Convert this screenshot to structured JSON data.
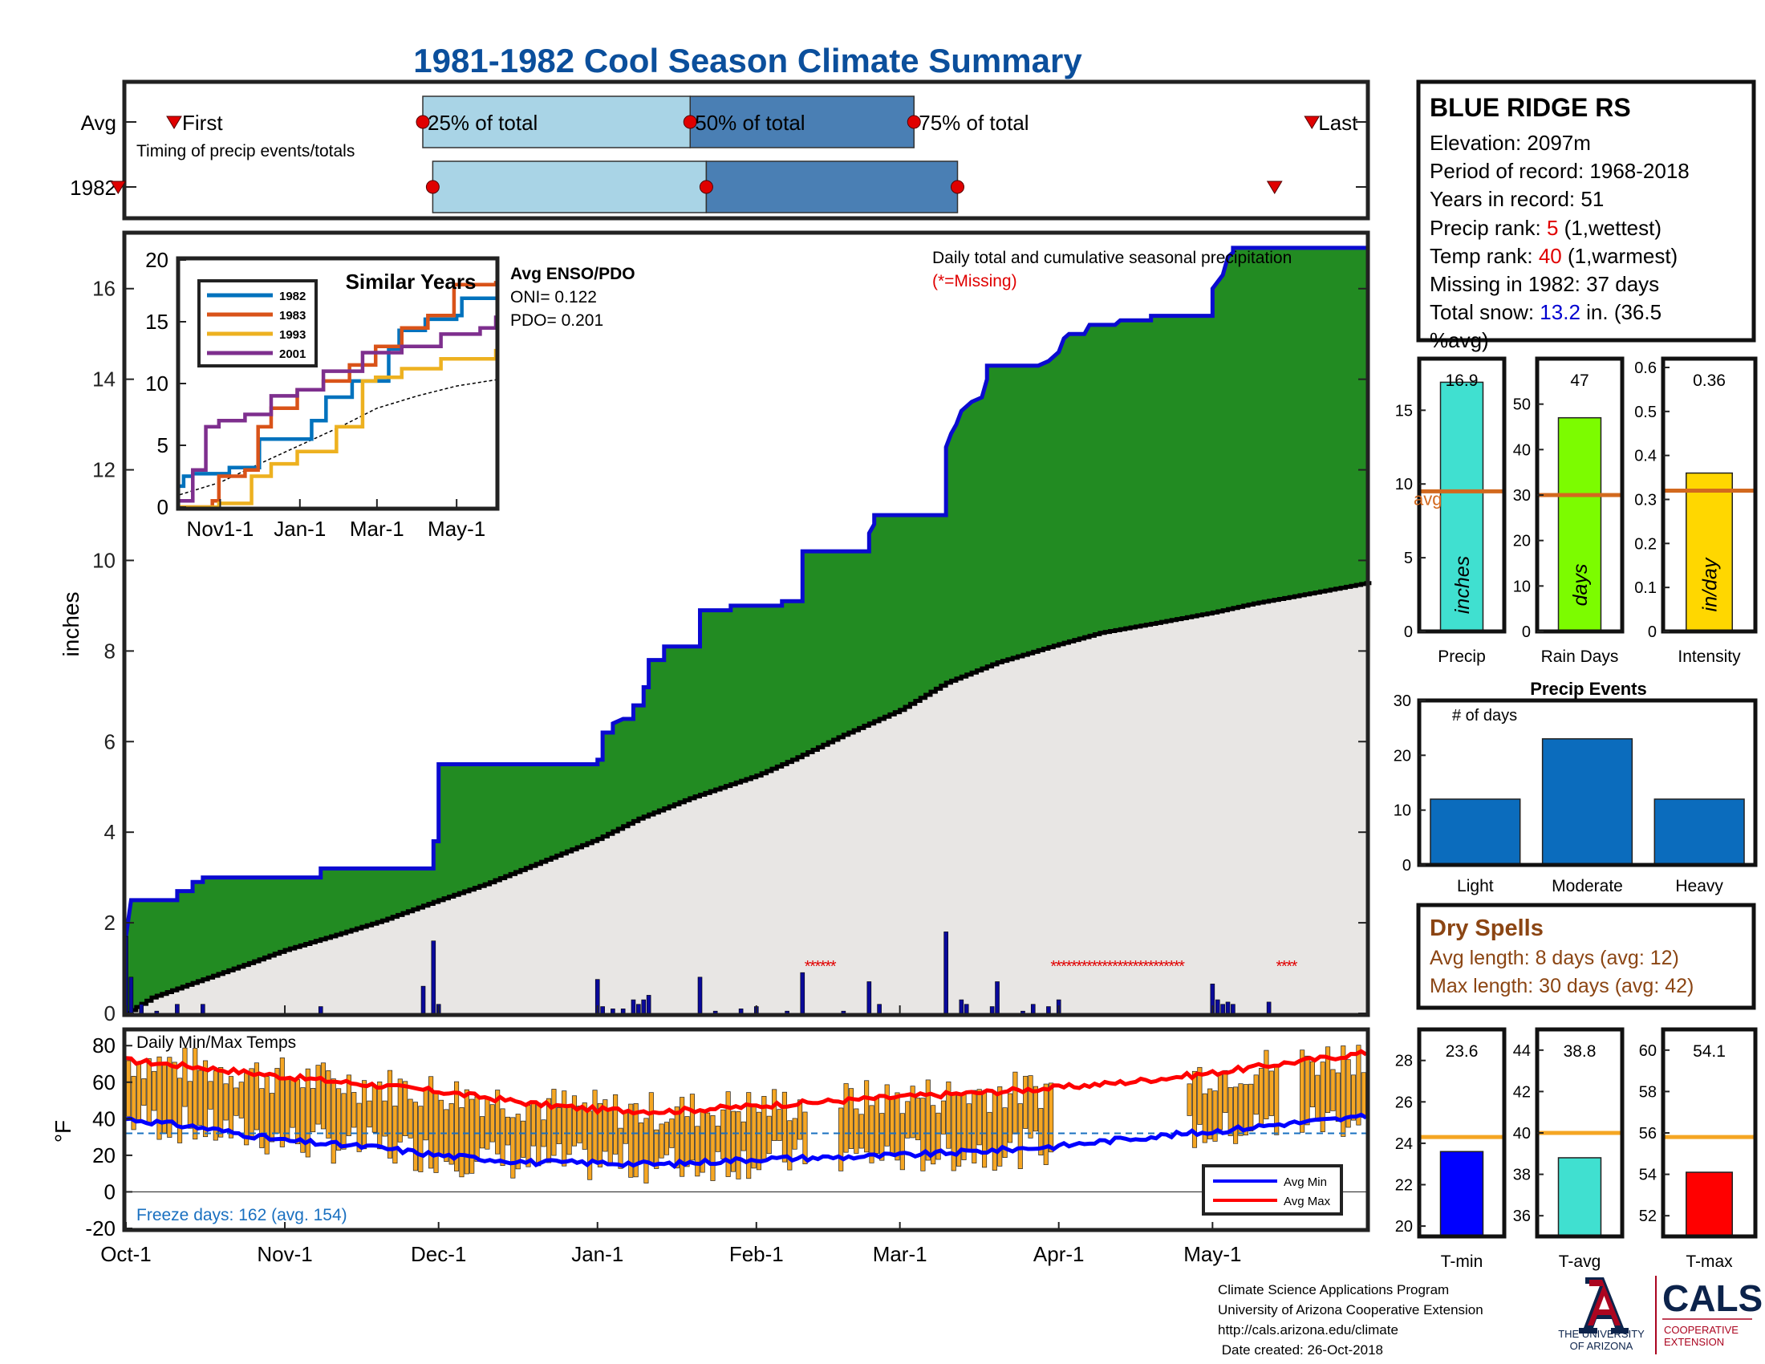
{
  "title": "1981-1982 Cool Season Climate Summary",
  "colors": {
    "title": "#0b4f9c",
    "light_blue": "#a9d4e6",
    "dark_blue": "#4a7fb4",
    "green": "#228b22",
    "grey": "#e8e6e4",
    "precip_line": "#0a0ad0",
    "red": "#e00000",
    "orange": "#f5a623",
    "avg_line": "#d2691e",
    "dry": "#8b4513",
    "cyan": "#40e0d0",
    "lime": "#7cfc00",
    "gold": "#ffd700",
    "bar_blue": "#0b6cbd",
    "ua_red": "#ab0520",
    "ua_navy": "#0c234b"
  },
  "timing": {
    "row_labels": [
      "Avg",
      "1982"
    ],
    "first_label": "First",
    "last_label": "Last",
    "q25_label": "25% of total",
    "q50_label": "50% of total",
    "q75_label": "75% of total",
    "caption": "Timing of precip events/totals",
    "avg": {
      "first": 0.04,
      "q25": 0.24,
      "q50": 0.455,
      "q75": 0.635,
      "last": 0.955
    },
    "y1982": {
      "first": -0.005,
      "q25": 0.248,
      "q50": 0.468,
      "q75": 0.67,
      "last": 0.925
    }
  },
  "station": {
    "name": "BLUE RIDGE RS",
    "elevation": "Elevation: 2097m",
    "period": "Period of record: 1968-2018",
    "years": "Years in record: 51",
    "precip_rank_prefix": "Precip rank: ",
    "precip_rank_value": "5",
    "precip_rank_suffix": " (1,wettest)",
    "temp_rank_prefix": "Temp rank: ",
    "temp_rank_value": "40",
    "temp_rank_suffix": " (1,warmest)",
    "missing": "Missing in 1982: 37 days",
    "snow_prefix": "Total snow: ",
    "snow_value": "13.2",
    "snow_suffix": " in. (36.5",
    "snow_line2": "%avg)"
  },
  "main_chart": {
    "ylabel": "inches",
    "ylim": [
      0,
      17.2
    ],
    "yticks": [
      0,
      2,
      4,
      6,
      8,
      10,
      12,
      14,
      16
    ],
    "x_labels": [
      "Oct-1",
      "Nov-1",
      "Dec-1",
      "Jan-1",
      "Feb-1",
      "Mar-1",
      "Apr-1",
      "May-1"
    ],
    "x_label_days": [
      0,
      31,
      61,
      92,
      123,
      151,
      182,
      212
    ],
    "days": 242,
    "annotation": "Daily total and cumulative seasonal precipitation",
    "missing_note": "(*=Missing)",
    "cumulative_steps": [
      [
        0,
        1.7
      ],
      [
        1,
        2.5
      ],
      [
        10,
        2.5
      ],
      [
        10,
        2.7
      ],
      [
        13,
        2.7
      ],
      [
        13,
        2.9
      ],
      [
        15,
        2.9
      ],
      [
        15,
        3.0
      ],
      [
        38,
        3.0
      ],
      [
        38,
        3.2
      ],
      [
        60,
        3.2
      ],
      [
        60,
        3.8
      ],
      [
        61,
        3.8
      ],
      [
        61,
        4.5
      ],
      [
        61,
        5.5
      ],
      [
        92,
        5.5
      ],
      [
        92,
        5.6
      ],
      [
        93,
        5.6
      ],
      [
        93,
        6.2
      ],
      [
        95,
        6.2
      ],
      [
        95,
        6.4
      ],
      [
        97,
        6.5
      ],
      [
        99,
        6.5
      ],
      [
        99,
        6.8
      ],
      [
        101,
        6.8
      ],
      [
        101,
        7.2
      ],
      [
        102,
        7.2
      ],
      [
        102,
        7.8
      ],
      [
        105,
        7.8
      ],
      [
        105,
        8.1
      ],
      [
        112,
        8.1
      ],
      [
        112,
        8.9
      ],
      [
        118,
        8.9
      ],
      [
        118,
        9.0
      ],
      [
        128,
        9.0
      ],
      [
        128,
        9.1
      ],
      [
        132,
        9.1
      ],
      [
        132,
        10.2
      ],
      [
        145,
        10.2
      ],
      [
        145,
        10.6
      ],
      [
        146,
        10.8
      ],
      [
        146,
        11.0
      ],
      [
        155,
        11.0
      ],
      [
        155,
        11.0
      ],
      [
        160,
        11.0
      ],
      [
        160,
        12.0
      ],
      [
        160,
        12.5
      ],
      [
        161,
        12.8
      ],
      [
        162,
        13.0
      ],
      [
        163,
        13.3
      ],
      [
        165,
        13.5
      ],
      [
        167,
        13.6
      ],
      [
        168,
        14.0
      ],
      [
        168,
        14.3
      ],
      [
        178,
        14.3
      ],
      [
        180,
        14.4
      ],
      [
        182,
        14.6
      ],
      [
        182,
        14.6
      ],
      [
        183,
        14.9
      ],
      [
        184,
        15.0
      ],
      [
        184,
        15.0
      ],
      [
        187,
        15.0
      ],
      [
        188,
        15.2
      ],
      [
        193,
        15.2
      ],
      [
        194,
        15.3
      ],
      [
        200,
        15.3
      ],
      [
        200,
        15.4
      ],
      [
        212,
        15.4
      ],
      [
        212,
        15.7
      ],
      [
        212,
        16.0
      ],
      [
        214,
        16.3
      ],
      [
        215,
        16.7
      ],
      [
        216,
        16.8
      ],
      [
        216,
        16.9
      ],
      [
        242,
        16.9
      ]
    ],
    "avg_cumulative": [
      [
        0,
        0.0
      ],
      [
        5,
        0.35
      ],
      [
        10,
        0.55
      ],
      [
        15,
        0.75
      ],
      [
        20,
        0.95
      ],
      [
        25,
        1.15
      ],
      [
        31,
        1.4
      ],
      [
        40,
        1.7
      ],
      [
        50,
        2.05
      ],
      [
        61,
        2.5
      ],
      [
        70,
        2.85
      ],
      [
        80,
        3.3
      ],
      [
        92,
        3.85
      ],
      [
        100,
        4.3
      ],
      [
        110,
        4.75
      ],
      [
        123,
        5.25
      ],
      [
        130,
        5.6
      ],
      [
        140,
        6.15
      ],
      [
        151,
        6.7
      ],
      [
        160,
        7.3
      ],
      [
        170,
        7.75
      ],
      [
        182,
        8.15
      ],
      [
        190,
        8.4
      ],
      [
        200,
        8.6
      ],
      [
        212,
        8.85
      ],
      [
        220,
        9.05
      ],
      [
        230,
        9.25
      ],
      [
        242,
        9.5
      ]
    ],
    "daily_bars": [
      [
        0,
        1.7
      ],
      [
        1,
        0.8
      ],
      [
        3,
        0.2
      ],
      [
        6,
        0.05
      ],
      [
        10,
        0.2
      ],
      [
        15,
        0.2
      ],
      [
        38,
        0.15
      ],
      [
        58,
        0.6
      ],
      [
        60,
        1.6
      ],
      [
        61,
        0.2
      ],
      [
        92,
        0.75
      ],
      [
        93,
        0.15
      ],
      [
        95,
        0.1
      ],
      [
        97,
        0.1
      ],
      [
        99,
        0.3
      ],
      [
        100,
        0.2
      ],
      [
        101,
        0.3
      ],
      [
        102,
        0.4
      ],
      [
        112,
        0.8
      ],
      [
        115,
        0.05
      ],
      [
        120,
        0.1
      ],
      [
        123,
        0.15
      ],
      [
        129,
        0.05
      ],
      [
        132,
        0.9
      ],
      [
        140,
        0.05
      ],
      [
        145,
        0.7
      ],
      [
        147,
        0.2
      ],
      [
        160,
        1.8
      ],
      [
        163,
        0.3
      ],
      [
        164,
        0.2
      ],
      [
        169,
        0.15
      ],
      [
        170,
        0.7
      ],
      [
        175,
        0.05
      ],
      [
        177,
        0.2
      ],
      [
        180,
        0.15
      ],
      [
        182,
        0.3
      ],
      [
        212,
        0.65
      ],
      [
        213,
        0.3
      ],
      [
        214,
        0.2
      ],
      [
        215,
        0.25
      ],
      [
        216,
        0.2
      ],
      [
        223,
        0.25
      ]
    ],
    "missing_days": [
      133,
      134,
      135,
      136,
      137,
      138,
      181,
      182,
      183,
      184,
      185,
      186,
      187,
      188,
      189,
      190,
      191,
      192,
      193,
      194,
      195,
      196,
      197,
      198,
      199,
      200,
      201,
      202,
      203,
      204,
      205,
      206,
      225,
      226,
      227,
      228
    ]
  },
  "similar_years": {
    "title": "Similar Years",
    "ylim": [
      0,
      20
    ],
    "yticks": [
      0,
      5,
      10,
      15,
      20
    ],
    "x_labels": [
      "Nov1-1",
      "Jan-1",
      "Mar-1",
      "May-1"
    ],
    "x_label_days": [
      31,
      92,
      151,
      212
    ],
    "series": [
      {
        "name": "1982",
        "color": "#0072bd",
        "points": [
          [
            0,
            1.7
          ],
          [
            3,
            2.5
          ],
          [
            10,
            2.7
          ],
          [
            38,
            3.2
          ],
          [
            61,
            5.5
          ],
          [
            101,
            7.0
          ],
          [
            112,
            8.9
          ],
          [
            132,
            10.2
          ],
          [
            160,
            12.8
          ],
          [
            168,
            14.3
          ],
          [
            188,
            15.2
          ],
          [
            212,
            15.5
          ],
          [
            216,
            16.9
          ],
          [
            242,
            16.9
          ]
        ]
      },
      {
        "name": "1983",
        "color": "#d95319",
        "points": [
          [
            0,
            0.0
          ],
          [
            25,
            0.5
          ],
          [
            30,
            2.5
          ],
          [
            50,
            3.0
          ],
          [
            60,
            6.5
          ],
          [
            70,
            8.0
          ],
          [
            90,
            9.5
          ],
          [
            110,
            10.2
          ],
          [
            130,
            11.5
          ],
          [
            150,
            13.0
          ],
          [
            170,
            14.5
          ],
          [
            190,
            15.5
          ],
          [
            210,
            18.0
          ],
          [
            242,
            18.3
          ]
        ]
      },
      {
        "name": "1993",
        "color": "#edb120",
        "points": [
          [
            0,
            0.0
          ],
          [
            30,
            0.3
          ],
          [
            55,
            2.5
          ],
          [
            70,
            3.5
          ],
          [
            90,
            4.5
          ],
          [
            120,
            6.5
          ],
          [
            140,
            10.2
          ],
          [
            150,
            10.5
          ],
          [
            170,
            11.2
          ],
          [
            200,
            12.0
          ],
          [
            230,
            12.0
          ],
          [
            242,
            12.8
          ]
        ]
      },
      {
        "name": "2001",
        "color": "#7e2f8e",
        "points": [
          [
            0,
            0.5
          ],
          [
            10,
            3.0
          ],
          [
            20,
            6.5
          ],
          [
            30,
            7.0
          ],
          [
            50,
            7.5
          ],
          [
            70,
            9.0
          ],
          [
            90,
            9.5
          ],
          [
            110,
            11.0
          ],
          [
            140,
            12.5
          ],
          [
            170,
            13.0
          ],
          [
            200,
            14.0
          ],
          [
            230,
            14.5
          ],
          [
            242,
            15.5
          ]
        ]
      }
    ],
    "avg_line": [
      [
        0,
        1.0
      ],
      [
        31,
        2.0
      ],
      [
        61,
        3.5
      ],
      [
        92,
        5.0
      ],
      [
        123,
        6.5
      ],
      [
        151,
        8.0
      ],
      [
        182,
        9.0
      ],
      [
        212,
        9.8
      ],
      [
        242,
        10.3
      ]
    ]
  },
  "enso": {
    "title": "Avg ENSO/PDO",
    "oni": "ONI= 0.122",
    "pdo": "PDO= 0.201"
  },
  "summary_bars": [
    {
      "label": "Precip",
      "unit": "inches",
      "value": 16.9,
      "value_text": "16.9",
      "avg": 9.5,
      "avg_text": "avg",
      "ylim": [
        0,
        18.5
      ],
      "yticks": [
        0,
        5,
        10,
        15
      ],
      "color": "#40e0d0"
    },
    {
      "label": "Rain Days",
      "unit": "days",
      "value": 47,
      "value_text": "47",
      "avg": 30,
      "ylim": [
        0,
        60
      ],
      "yticks": [
        0,
        10,
        20,
        30,
        40,
        50
      ],
      "color": "#7cfc00"
    },
    {
      "label": "Intensity",
      "unit": "in/day",
      "value": 0.36,
      "value_text": "0.36",
      "avg": 0.32,
      "ylim": [
        0,
        0.62
      ],
      "yticks": [
        0,
        0.1,
        0.2,
        0.3,
        0.4,
        0.5,
        0.6
      ],
      "color": "#ffd700"
    }
  ],
  "precip_events": {
    "title": "Precip Events",
    "ylabel": "# of days",
    "categories": [
      "Light",
      "Moderate",
      "Heavy"
    ],
    "values": [
      12,
      23,
      12
    ],
    "ylim": [
      0,
      30
    ],
    "yticks": [
      0,
      10,
      20,
      30
    ]
  },
  "dry_spells": {
    "title": "Dry Spells",
    "avg_length": "Avg length: 8 days (avg: 12)",
    "max_length": "Max length: 30 days (avg: 42)"
  },
  "temps": {
    "title": "Daily Min/Max Temps",
    "ylabel": "°F",
    "ylim": [
      -20,
      88
    ],
    "yticks": [
      -20,
      0,
      20,
      40,
      60,
      80
    ],
    "freeze_days": "Freeze days: 162 (avg. 154)",
    "freeze_line": 32,
    "legend": [
      "Avg Min",
      "Avg Max"
    ],
    "avg_max": [
      [
        0,
        72
      ],
      [
        15,
        68
      ],
      [
        31,
        63
      ],
      [
        50,
        58
      ],
      [
        61,
        55
      ],
      [
        80,
        48
      ],
      [
        92,
        45
      ],
      [
        105,
        44
      ],
      [
        123,
        47
      ],
      [
        140,
        50
      ],
      [
        151,
        52
      ],
      [
        165,
        54
      ],
      [
        182,
        57
      ],
      [
        195,
        60
      ],
      [
        212,
        65
      ],
      [
        225,
        70
      ],
      [
        242,
        76
      ]
    ],
    "avg_min": [
      [
        0,
        40
      ],
      [
        15,
        35
      ],
      [
        31,
        28
      ],
      [
        50,
        24
      ],
      [
        61,
        20
      ],
      [
        80,
        16
      ],
      [
        92,
        16
      ],
      [
        105,
        15
      ],
      [
        123,
        18
      ],
      [
        140,
        19
      ],
      [
        151,
        20
      ],
      [
        165,
        22
      ],
      [
        182,
        25
      ],
      [
        195,
        29
      ],
      [
        212,
        33
      ],
      [
        225,
        37
      ],
      [
        242,
        41
      ]
    ],
    "daily_range_seed": 7
  },
  "temp_bars": [
    {
      "label": "T-min",
      "value": 23.6,
      "value_text": "23.6",
      "avg": 24.3,
      "ylim": [
        19.5,
        29.5
      ],
      "yticks": [
        20,
        22,
        24,
        26,
        28
      ],
      "color": "#0000ff"
    },
    {
      "label": "T-avg",
      "value": 38.8,
      "value_text": "38.8",
      "avg": 40.0,
      "ylim": [
        35,
        45
      ],
      "yticks": [
        36,
        38,
        40,
        42,
        44
      ],
      "color": "#40e0d0"
    },
    {
      "label": "T-max",
      "value": 54.1,
      "value_text": "54.1",
      "avg": 55.8,
      "ylim": [
        51,
        61
      ],
      "yticks": [
        52,
        54,
        56,
        58,
        60
      ],
      "color": "#ff0000"
    }
  ],
  "footer": {
    "line1": "Climate Science Applications Program",
    "line2": "University of Arizona Cooperative Extension",
    "line3": "http://cals.arizona.edu/climate",
    "line4": " Date created: 26-Oct-2018"
  },
  "logo": {
    "ua_line1": "THE UNIVERSITY",
    "ua_line2": "OF ARIZONA",
    "cals": "CALS",
    "coop1": "COOPERATIVE",
    "coop2": "EXTENSION"
  }
}
